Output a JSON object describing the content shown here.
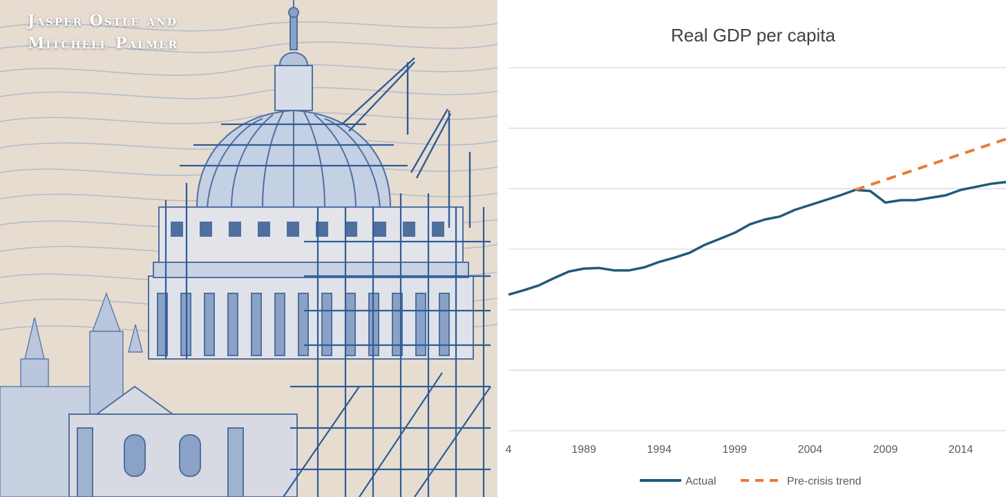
{
  "cover": {
    "authors": [
      "Jasper Ostle and",
      "Mitchell Palmer"
    ],
    "illustration": "dome-under-construction-engraving"
  },
  "colors": {
    "actual": "#1f5a7a",
    "trend": "#e97a35",
    "grid": "#d9d9d9",
    "ink": "#5878a8",
    "paper": "#e6ddd0"
  },
  "chart_data": {
    "type": "line",
    "title": "Real GDP per capita",
    "xlabel": "",
    "ylabel": "",
    "xlim": [
      1984,
      2017
    ],
    "ylim": [
      0,
      6
    ],
    "gridlines": [
      0,
      1,
      2,
      3,
      4,
      5,
      6
    ],
    "x_ticks": [
      "4",
      "1989",
      "1994",
      "1999",
      "2004",
      "2009",
      "2014"
    ],
    "legend": {
      "position": "bottom",
      "entries": [
        "Actual",
        "Pre-crisis trend"
      ]
    },
    "series": [
      {
        "name": "Actual",
        "style": "solid",
        "x": [
          1984,
          1985,
          1986,
          1987,
          1988,
          1989,
          1990,
          1991,
          1992,
          1993,
          1994,
          1995,
          1996,
          1997,
          1998,
          1999,
          2000,
          2001,
          2002,
          2003,
          2004,
          2005,
          2006,
          2007,
          2008,
          2009,
          2010,
          2011,
          2012,
          2013,
          2014,
          2015,
          2016,
          2017
        ],
        "values": [
          2.25,
          2.32,
          2.4,
          2.52,
          2.63,
          2.68,
          2.69,
          2.65,
          2.65,
          2.7,
          2.79,
          2.86,
          2.94,
          3.07,
          3.17,
          3.27,
          3.41,
          3.49,
          3.54,
          3.65,
          3.73,
          3.81,
          3.89,
          3.98,
          3.96,
          3.77,
          3.81,
          3.81,
          3.85,
          3.89,
          3.98,
          4.03,
          4.08,
          4.11
        ]
      },
      {
        "name": "Pre-crisis trend",
        "style": "dashed",
        "x": [
          2007,
          2017
        ],
        "values": [
          3.98,
          4.82
        ]
      }
    ]
  }
}
